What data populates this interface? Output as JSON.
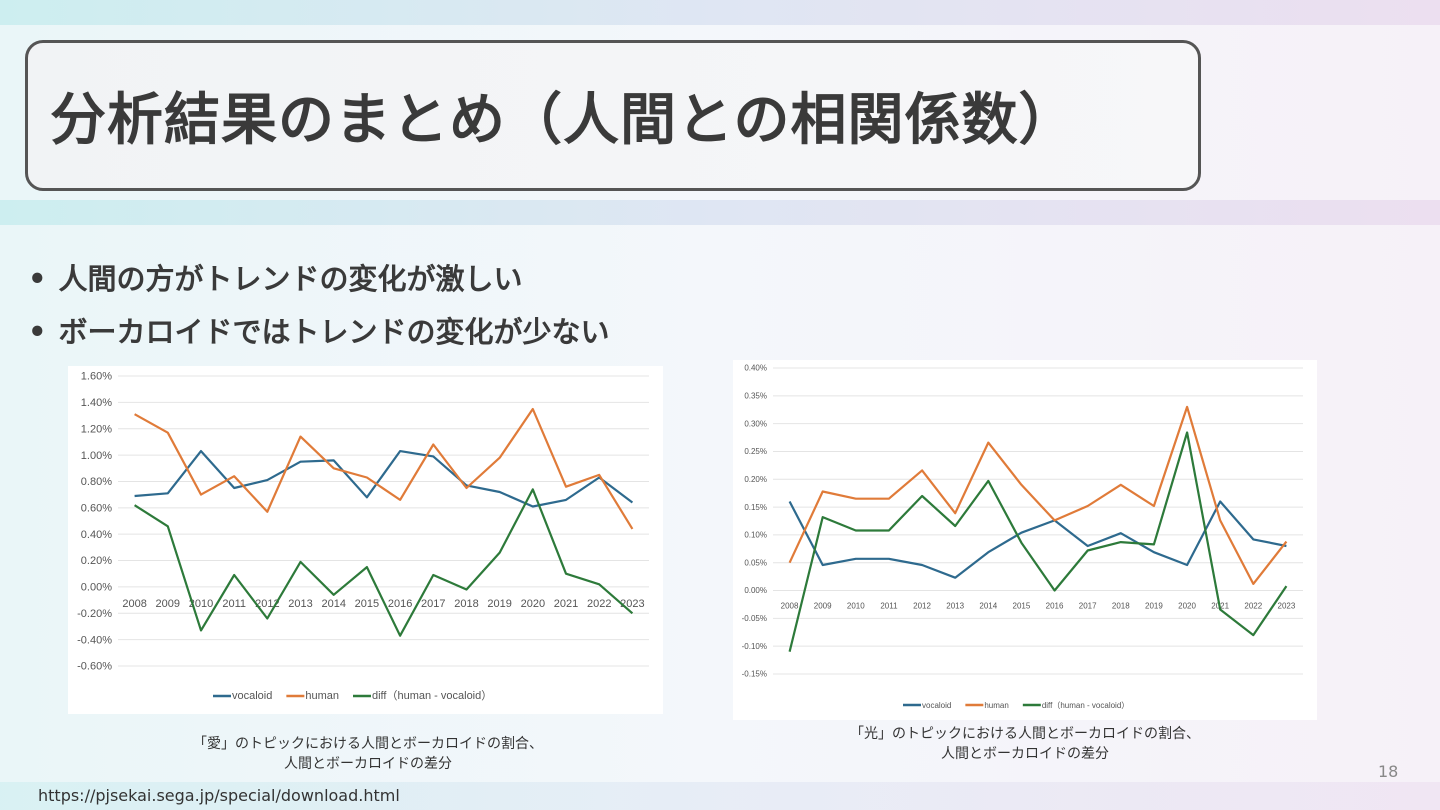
{
  "title": "分析結果のまとめ（人間との相関係数）",
  "bullets": [
    "人間の方がトレンドの変化が激しい",
    "ボーカロイドではトレンドの変化が少ない"
  ],
  "captions": [
    [
      "「愛」のトピックにおける人間とボーカロイドの割合、",
      "人間とボーカロイドの差分"
    ],
    [
      "「光」のトピックにおける人間とボーカロイドの割合、",
      "人間とボーカロイドの差分"
    ]
  ],
  "page_number": "18",
  "url": "https://pjsekai.sega.jp/special/download.html",
  "colors": {
    "vocaloid": "#2e6a8e",
    "human": "#e07b39",
    "diff": "#2d7a3a"
  },
  "chart_data": [
    {
      "type": "line",
      "title": "",
      "xlabel": "",
      "ylabel": "",
      "ylim": [
        -0.6,
        1.6
      ],
      "ystep": 0.2,
      "decimals": 2,
      "grid": true,
      "legend": "bottom",
      "categories": [
        "2008",
        "2009",
        "2010",
        "2011",
        "2012",
        "2013",
        "2014",
        "2015",
        "2016",
        "2017",
        "2018",
        "2019",
        "2020",
        "2021",
        "2022",
        "2023"
      ],
      "series": [
        {
          "name": "vocaloid",
          "values": [
            0.69,
            0.71,
            1.03,
            0.75,
            0.81,
            0.95,
            0.96,
            0.68,
            1.03,
            0.99,
            0.77,
            0.72,
            0.61,
            0.66,
            0.83,
            0.64
          ]
        },
        {
          "name": "human",
          "values": [
            1.31,
            1.17,
            0.7,
            0.84,
            0.57,
            1.14,
            0.9,
            0.83,
            0.66,
            1.08,
            0.75,
            0.98,
            1.35,
            0.76,
            0.85,
            0.44
          ]
        },
        {
          "name": "diff（human - vocaloid）",
          "values": [
            0.62,
            0.46,
            -0.33,
            0.09,
            -0.24,
            0.19,
            -0.06,
            0.15,
            -0.37,
            0.09,
            -0.02,
            0.26,
            0.74,
            0.1,
            0.02,
            -0.2
          ]
        }
      ]
    },
    {
      "type": "line",
      "title": "",
      "xlabel": "",
      "ylabel": "",
      "ylim": [
        -0.15,
        0.4
      ],
      "ystep": 0.05,
      "decimals": 2,
      "grid": true,
      "legend": "bottom",
      "categories": [
        "2008",
        "2009",
        "2010",
        "2011",
        "2012",
        "2013",
        "2014",
        "2015",
        "2016",
        "2017",
        "2018",
        "2019",
        "2020",
        "2021",
        "2022",
        "2023"
      ],
      "series": [
        {
          "name": "vocaloid",
          "values": [
            0.16,
            0.046,
            0.057,
            0.057,
            0.046,
            0.023,
            0.069,
            0.104,
            0.126,
            0.08,
            0.103,
            0.069,
            0.046,
            0.16,
            0.092,
            0.08
          ]
        },
        {
          "name": "human",
          "values": [
            0.05,
            0.178,
            0.165,
            0.165,
            0.216,
            0.139,
            0.266,
            0.19,
            0.126,
            0.152,
            0.19,
            0.152,
            0.33,
            0.126,
            0.012,
            0.088
          ]
        },
        {
          "name": "diff（human - vocaloid）",
          "values": [
            -0.11,
            0.132,
            0.108,
            0.108,
            0.17,
            0.116,
            0.197,
            0.086,
            0.0,
            0.072,
            0.087,
            0.083,
            0.284,
            -0.034,
            -0.08,
            0.008
          ]
        }
      ]
    }
  ]
}
